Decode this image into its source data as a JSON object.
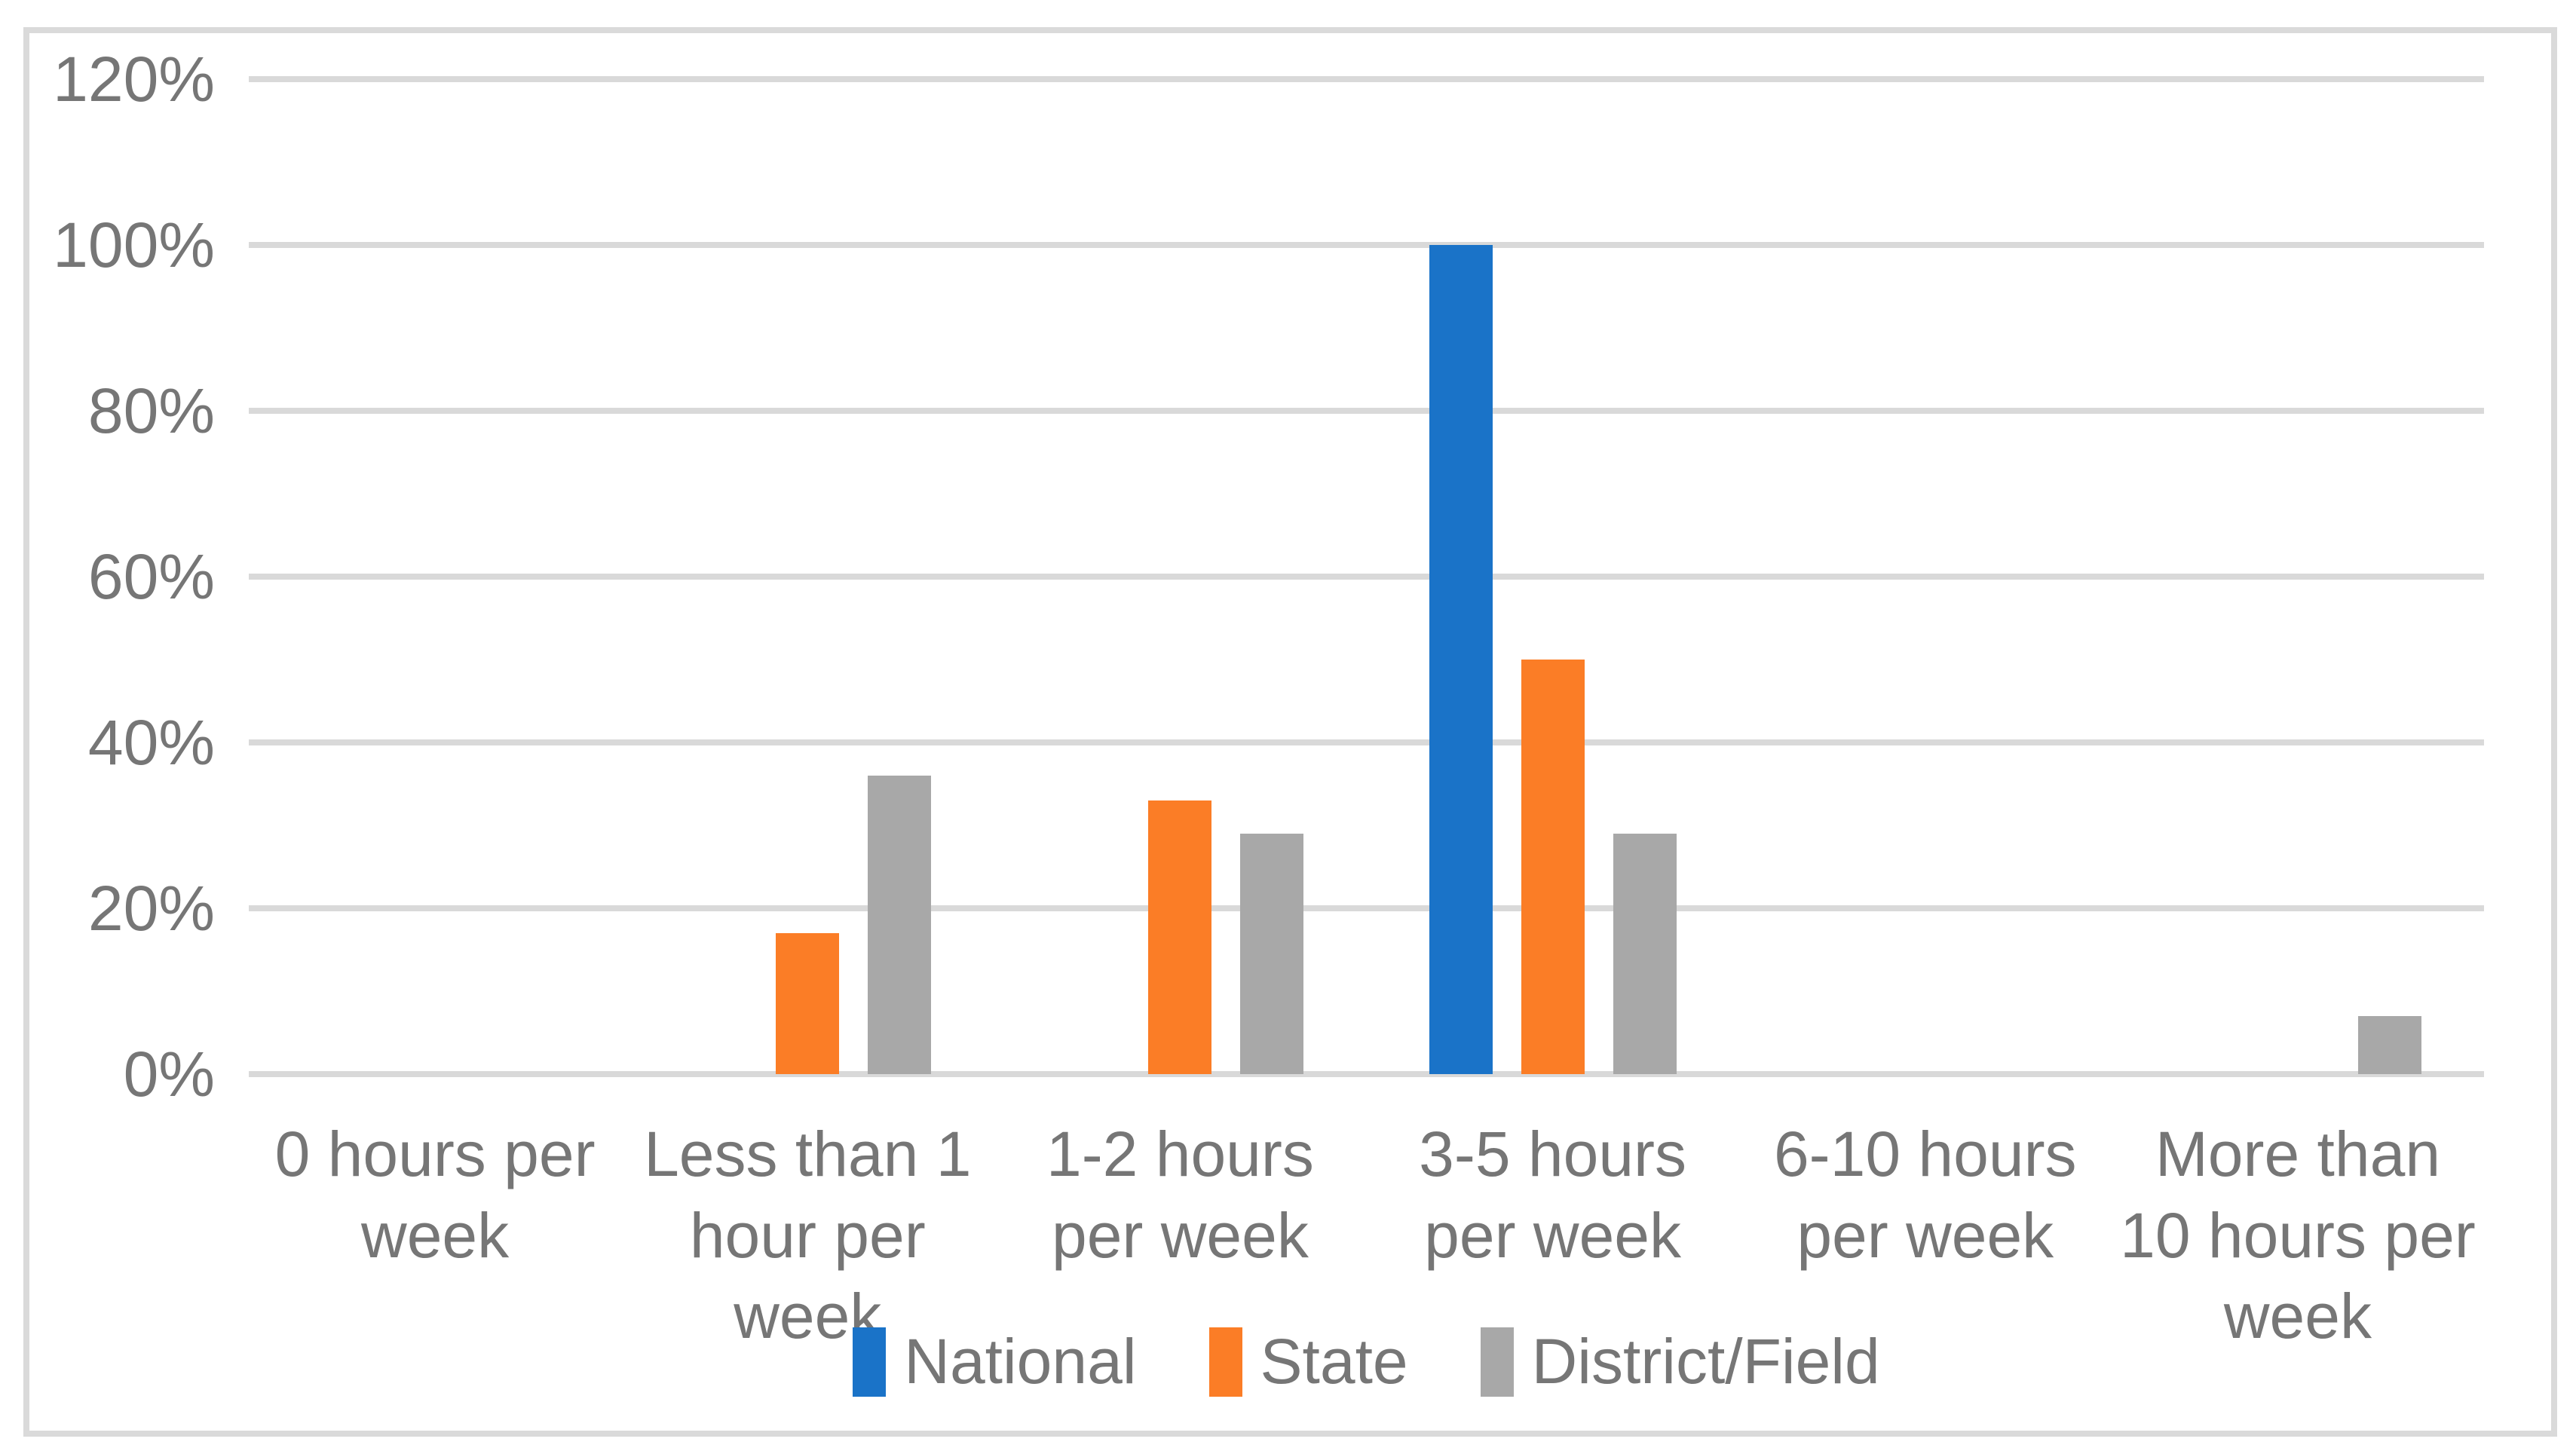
{
  "figure": {
    "background": "#FFFFFF",
    "border_color": "#DADADA"
  },
  "chart_data": {
    "type": "bar",
    "title": "",
    "categories": [
      "0 hours per week",
      "Less than 1 hour per week",
      "1-2 hours per week",
      "3-5 hours per week",
      "6-10 hours per week",
      "More than 10 hours per week"
    ],
    "series": [
      {
        "name": "National",
        "color": "#1A73C8",
        "values": [
          0,
          0,
          0,
          100,
          0,
          0
        ]
      },
      {
        "name": "State",
        "color": "#FB7D26",
        "values": [
          0,
          17,
          33,
          50,
          0,
          0
        ]
      },
      {
        "name": "District/Field",
        "color": "#A8A8A8",
        "values": [
          0,
          36,
          29,
          29,
          0,
          7
        ]
      }
    ],
    "y_axis": {
      "min": 0,
      "max": 120,
      "tick_step": 20,
      "tick_labels": [
        "0%",
        "20%",
        "40%",
        "60%",
        "80%",
        "100%",
        "120%"
      ]
    },
    "grid": true,
    "gridline_color": "#D9D9D9",
    "axis_text_color": "#767676",
    "legend_position": "bottom",
    "legend_entries": [
      "National",
      "State",
      "District/Field"
    ]
  }
}
